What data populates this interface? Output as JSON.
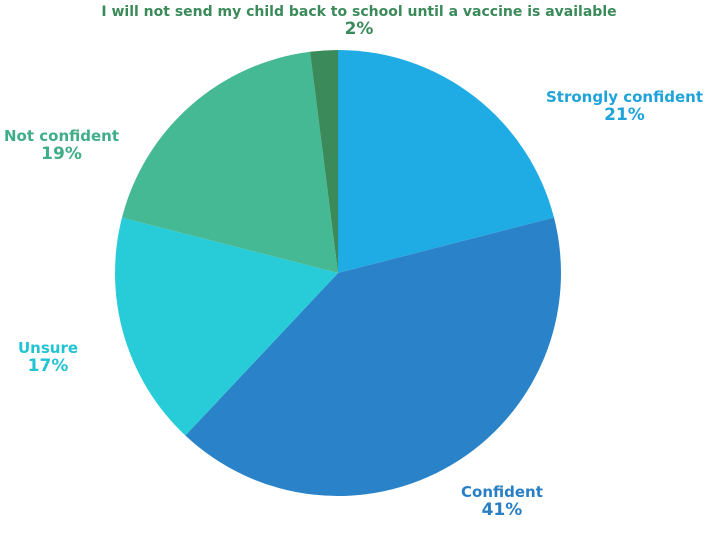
{
  "chart_data": {
    "type": "pie",
    "title": "",
    "start_angle_deg": 0,
    "direction": "clockwise",
    "slices": [
      {
        "label": "Strongly confident",
        "value": 21,
        "value_label": "21%",
        "color": "#1fabe3"
      },
      {
        "label": "Confident",
        "value": 41,
        "value_label": "41%",
        "color": "#2a83c8"
      },
      {
        "label": "Unsure",
        "value": 17,
        "value_label": "17%",
        "color": "#27ccd8"
      },
      {
        "label": "Not confident",
        "value": 19,
        "value_label": "19%",
        "color": "#45b994"
      },
      {
        "label": "I will not send my child back to school until a vaccine is available",
        "value": 2,
        "value_label": "2%",
        "color": "#3b8a5a"
      }
    ],
    "label_colors": {
      "Strongly confident": "#1fa3da",
      "Confident": "#2a7fc4",
      "Unsure": "#22c4d2",
      "Not confident": "#3fae86",
      "I will not send my child back to school until a vaccine is available": "#3b8a5a"
    }
  }
}
